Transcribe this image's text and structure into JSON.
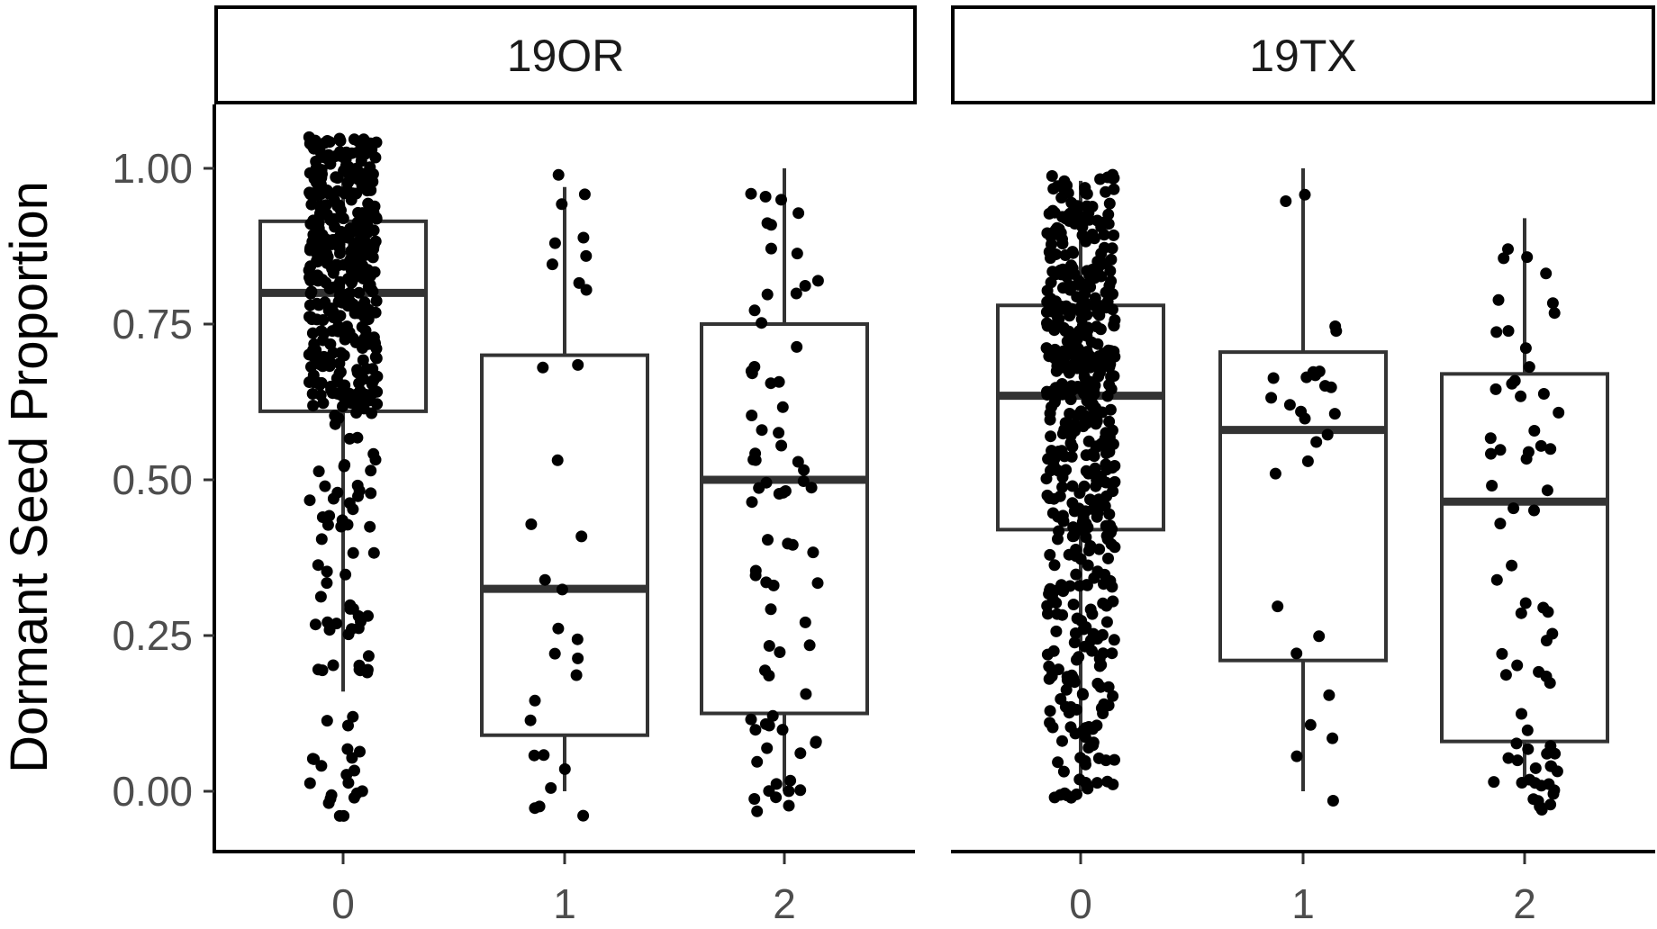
{
  "chart_data": {
    "type": "box",
    "ylabel": "Dormant Seed Proportion",
    "xlabel": "",
    "ylim": [
      -0.07,
      1.07
    ],
    "yticks": [
      "0.00",
      "0.25",
      "0.50",
      "0.75",
      "1.00"
    ],
    "ytick_values": [
      0,
      0.25,
      0.5,
      0.75,
      1.0
    ],
    "categories": [
      "0",
      "1",
      "2"
    ],
    "grid": false,
    "legend": "none",
    "colors": {
      "box": "#333333",
      "point": "#000000"
    },
    "panels": [
      {
        "label": "19OR",
        "groups": [
          {
            "category": "0",
            "n_points": 450,
            "min": 0.16,
            "q1": 0.61,
            "median": 0.8,
            "q3": 0.915,
            "max": 1.0,
            "point_low": -0.04,
            "point_high": 1.05
          },
          {
            "category": "1",
            "n_points": 30,
            "min": 0.0,
            "q1": 0.09,
            "median": 0.325,
            "q3": 0.7,
            "max": 0.97,
            "point_low": -0.05,
            "point_high": 1.01
          },
          {
            "category": "2",
            "n_points": 75,
            "min": 0.0,
            "q1": 0.125,
            "median": 0.5,
            "q3": 0.75,
            "max": 1.0,
            "point_low": -0.04,
            "point_high": 0.98
          }
        ]
      },
      {
        "label": "19TX",
        "groups": [
          {
            "category": "0",
            "n_points": 520,
            "min": 0.0,
            "q1": 0.42,
            "median": 0.635,
            "q3": 0.78,
            "max": 0.98,
            "point_low": -0.02,
            "point_high": 0.99
          },
          {
            "category": "1",
            "n_points": 28,
            "min": 0.0,
            "q1": 0.21,
            "median": 0.58,
            "q3": 0.705,
            "max": 1.0,
            "point_low": -0.02,
            "point_high": 1.03
          },
          {
            "category": "2",
            "n_points": 70,
            "min": 0.02,
            "q1": 0.08,
            "median": 0.465,
            "q3": 0.67,
            "max": 0.92,
            "point_low": -0.03,
            "point_high": 0.89
          }
        ]
      }
    ]
  }
}
